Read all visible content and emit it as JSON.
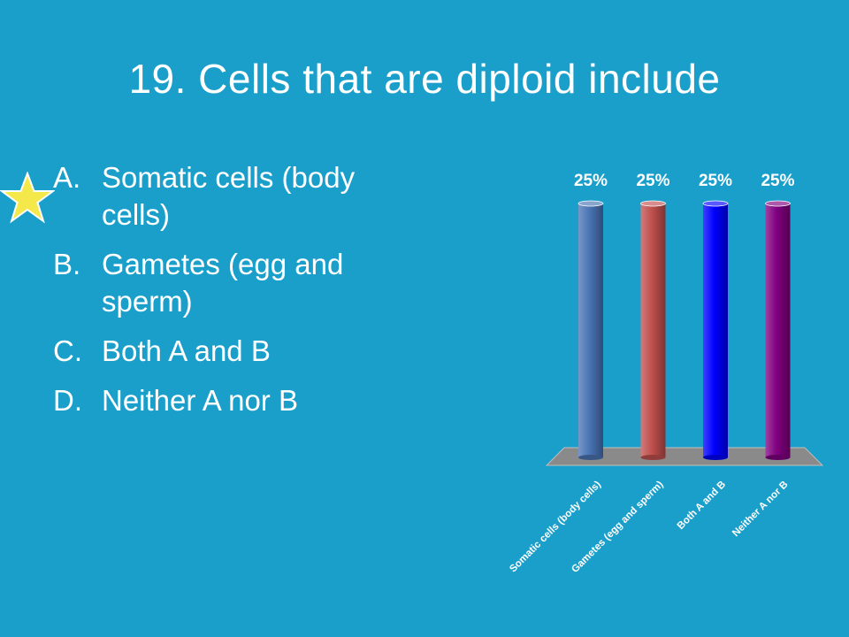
{
  "slide": {
    "title": "19.  Cells that are diploid include",
    "answers": [
      {
        "letter": "A.",
        "text": "Somatic cells (body cells)"
      },
      {
        "letter": "B.",
        "text": "Gametes (egg and sperm)"
      },
      {
        "letter": "C.",
        "text": "Both A and B"
      },
      {
        "letter": "D.",
        "text": "Neither A nor B"
      }
    ],
    "marker_icon": "star-icon",
    "marker_color": "#f5e84a"
  },
  "chart_data": {
    "type": "bar",
    "categories": [
      "Somatic cells (body cells)",
      "Gametes (egg and sperm)",
      "Both A and B",
      "Neither A nor B"
    ],
    "values": [
      25,
      25,
      25,
      25
    ],
    "data_labels": [
      "25%",
      "25%",
      "25%",
      "25%"
    ],
    "colors": [
      "#4a74b4",
      "#c0504d",
      "#0000ff",
      "#800080"
    ],
    "floor_color": "#8a8a8a",
    "ylim": [
      0,
      25
    ],
    "style": "3d-cylinder",
    "title": "",
    "xlabel": "",
    "ylabel": ""
  }
}
